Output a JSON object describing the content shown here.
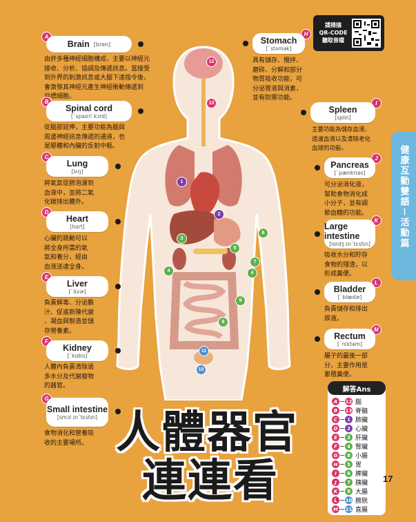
{
  "qr": {
    "label_line1": "請掃描",
    "label_line2": "QR-CODE",
    "label_line3": "聽取音檔"
  },
  "side_tab": "健康互動雙語－活動篇",
  "title_line1": "人體器官",
  "title_line2": "連連看",
  "page_number": "17",
  "colors": {
    "background": "#e8a23e",
    "badge": "#d9356a",
    "tab": "#6cb8de"
  },
  "organs_left": [
    {
      "letter": "A",
      "name": "Brain",
      "phonetic": "[bren]",
      "desc": [
        "由許多種神經細胞構成，主要以神經元",
        "接收、分析、協調及傳遞訊息。當接受",
        "到外界的刺激訊息或大腦下達指令後，",
        "會激發其神經元產生神經衝動傳遞到",
        "目標細胞。"
      ]
    },
    {
      "letter": "B",
      "name": "Spinal cord",
      "phonetic": "[ˋspaɪn! kɔrd]",
      "desc": [
        "從腦部延伸，主要功能為腦與",
        "周邊神經訊息傳遞的通道，也",
        "是驅體和內臟的反射中樞。"
      ]
    },
    {
      "letter": "C",
      "name": "Lung",
      "phonetic": "[lʌŋ]",
      "desc": [
        "將氧氣從肺泡運到",
        "血液中，並將二氧",
        "化碳排出體外。"
      ]
    },
    {
      "letter": "D",
      "name": "Heart",
      "phonetic": "[hɑrt]",
      "desc": [
        "心臟的跳動可以",
        "將全身所需的氧",
        "氣和養分，經由",
        "血液送達全身。"
      ]
    },
    {
      "letter": "E",
      "name": "Liver",
      "phonetic": "[ˋlɪvɚ]",
      "desc": [
        "負責解毒、分泌膽",
        "汁、促進新陳代謝",
        "、凝血與製造並儲",
        "存營養素。"
      ]
    },
    {
      "letter": "F",
      "name": "Kidney",
      "phonetic": "[ˋkɪdnɪ]",
      "desc": [
        "人體內負責清除過",
        "多水分及代謝廢物",
        "的器官。"
      ]
    },
    {
      "letter": "G",
      "name": "Small intestine",
      "phonetic": "[smɔl ɪnˋtɛstɪn]",
      "desc": [
        "食物消化和營養吸",
        "收的主要場所。"
      ]
    }
  ],
  "organs_right": [
    {
      "letter": "H",
      "name": "Stomach",
      "phonetic": "[ˋstʌmək]",
      "desc": [
        "具有儲存、攪拌、",
        "磨碎、分解和部分",
        "物質吸收功能，可",
        "分泌胃液與消素，",
        "並有防禦功能。"
      ]
    },
    {
      "letter": "I",
      "name": "Spleen",
      "phonetic": "[splin]",
      "desc": [
        "主要功能為儲存血液、",
        "過濾血液以及清除老化",
        "血球的功能。"
      ]
    },
    {
      "letter": "J",
      "name": "Pancreas",
      "phonetic": "[ˋpænkrɪəs]",
      "desc": [
        "可分泌消化液，",
        "幫助食物消化成",
        "小分子，並有調",
        "節血糖的功能。"
      ]
    },
    {
      "letter": "K",
      "name": "Large intestine",
      "phonetic": "[lɑrdʒ ɪnˋtɛstɪn]",
      "desc": [
        "吸收水分和貯存",
        "食物的殘渣，以",
        "形成糞便。"
      ]
    },
    {
      "letter": "L",
      "name": "Bladder",
      "phonetic": "[ˋblædɚ]",
      "desc": [
        "負責儲存和排出",
        "尿液。"
      ]
    },
    {
      "letter": "M",
      "name": "Rectum",
      "phonetic": "[ˋrɛktəm]",
      "desc": [
        "腸子的最後一部",
        "分，主要作用是",
        "累積糞便。"
      ]
    }
  ],
  "body_numbers": [
    "12",
    "13",
    "1",
    "2",
    "3",
    "4",
    "5",
    "6",
    "7",
    "4",
    "9",
    "8",
    "11",
    "10"
  ],
  "answers": {
    "title": "解答Ans",
    "rows": [
      {
        "letter": "A",
        "num": "12",
        "organ": "腦"
      },
      {
        "letter": "B",
        "num": "13",
        "organ": "脊髓"
      },
      {
        "letter": "C",
        "num": "1",
        "organ": "肺臟"
      },
      {
        "letter": "D",
        "num": "2",
        "organ": "心臟"
      },
      {
        "letter": "E",
        "num": "3",
        "organ": "肝臟"
      },
      {
        "letter": "F",
        "num": "4",
        "organ": "腎臟"
      },
      {
        "letter": "G",
        "num": "8",
        "organ": "小腸"
      },
      {
        "letter": "H",
        "num": "5",
        "organ": "胃"
      },
      {
        "letter": "I",
        "num": "6",
        "organ": "脾臟"
      },
      {
        "letter": "J",
        "num": "7",
        "organ": "胰臟"
      },
      {
        "letter": "K",
        "num": "9",
        "organ": "大腸"
      },
      {
        "letter": "L",
        "num": "10",
        "organ": "膀胱"
      },
      {
        "letter": "M",
        "num": "11",
        "organ": "直腸"
      }
    ]
  }
}
